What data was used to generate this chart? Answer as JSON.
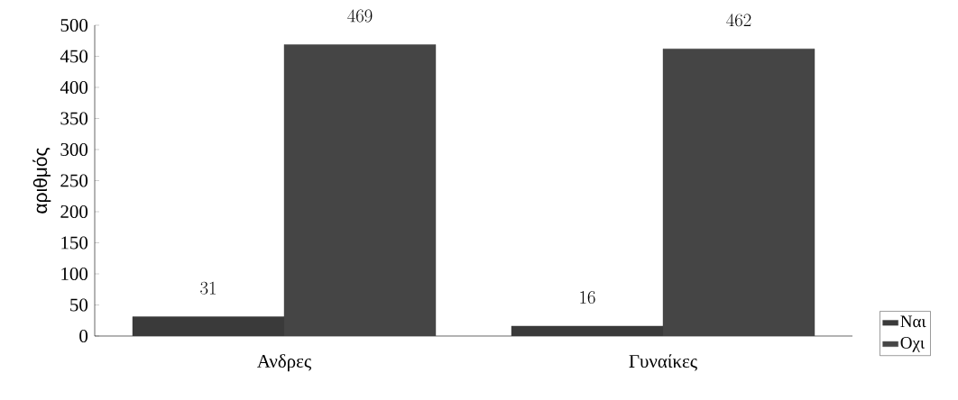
{
  "chart_data": {
    "type": "bar",
    "ylabel": "αριθμός",
    "categories": [
      "Ανδρες",
      "Γυναίκες"
    ],
    "series": [
      {
        "name": "Ναι",
        "color": "#3a3a3a",
        "values": [
          31,
          16
        ]
      },
      {
        "name": "Οχι",
        "color": "#454545",
        "values": [
          469,
          462
        ]
      }
    ],
    "ylim": [
      0,
      500
    ],
    "yticks": [
      0,
      50,
      100,
      150,
      200,
      250,
      300,
      350,
      400,
      450,
      500
    ],
    "data_labels": true,
    "legend": "bottom right"
  }
}
